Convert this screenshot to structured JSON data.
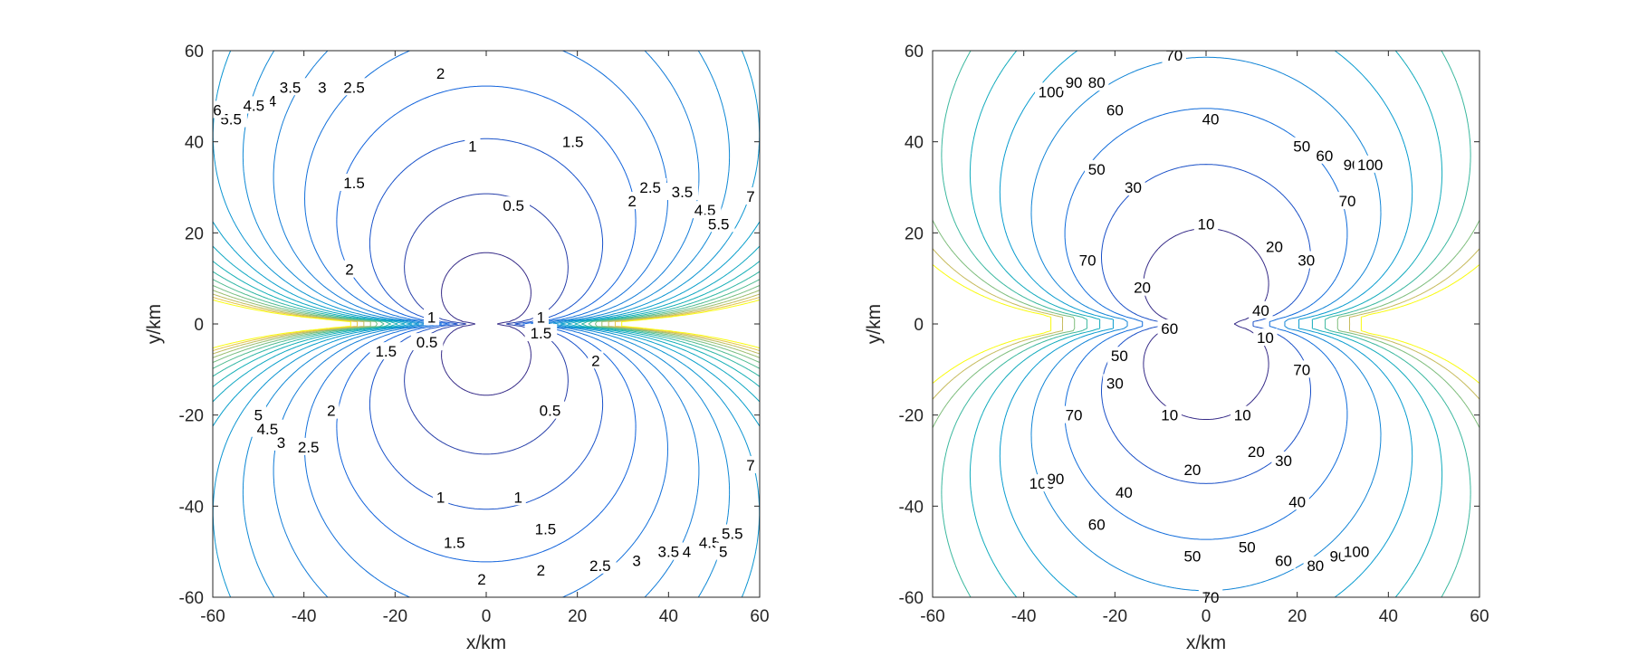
{
  "chart_data": [
    {
      "type": "contour",
      "title": "",
      "xlabel": "x/km",
      "ylabel": "y/km",
      "xlim": [
        -60,
        60
      ],
      "ylim": [
        -60,
        60
      ],
      "xticks": [
        -60,
        -40,
        -20,
        0,
        20,
        40,
        60
      ],
      "yticks": [
        -60,
        -40,
        -20,
        0,
        20,
        40,
        60
      ],
      "xtick_labels": [
        "-60",
        "-40",
        "-20",
        "0",
        "20",
        "40",
        "60"
      ],
      "ytick_labels": [
        "-60",
        "-40",
        "-20",
        "0",
        "20",
        "40",
        "60"
      ],
      "colormap": "parula",
      "singular_points_x": [
        -8,
        8
      ],
      "levels": [
        0.5,
        1,
        1.5,
        2,
        2.5,
        3,
        3.5,
        4,
        4.5,
        5,
        5.5,
        6,
        6.5,
        7,
        7.5,
        8,
        8.5,
        9
      ],
      "color_range": [
        0.5,
        9
      ],
      "contour_labels": [
        {
          "text": "2",
          "x": -10,
          "y": 55
        },
        {
          "text": "2.5",
          "x": -29,
          "y": 52
        },
        {
          "text": "3",
          "x": -36,
          "y": 52
        },
        {
          "text": "3.5",
          "x": -43,
          "y": 52
        },
        {
          "text": "4",
          "x": -47,
          "y": 49
        },
        {
          "text": "4.5",
          "x": -51,
          "y": 48
        },
        {
          "text": "5.5",
          "x": -56,
          "y": 45
        },
        {
          "text": "6",
          "x": -59,
          "y": 47
        },
        {
          "text": "1",
          "x": -3,
          "y": 39
        },
        {
          "text": "1.5",
          "x": 19,
          "y": 40
        },
        {
          "text": "0.5",
          "x": 6,
          "y": 26
        },
        {
          "text": "1.5",
          "x": -29,
          "y": 31
        },
        {
          "text": "2",
          "x": 32,
          "y": 27
        },
        {
          "text": "2.5",
          "x": 36,
          "y": 30
        },
        {
          "text": "3.5",
          "x": 43,
          "y": 29
        },
        {
          "text": "4.5",
          "x": 48,
          "y": 25
        },
        {
          "text": "5.5",
          "x": 51,
          "y": 22
        },
        {
          "text": "7",
          "x": 58,
          "y": 28
        },
        {
          "text": "2",
          "x": -30,
          "y": 12
        },
        {
          "text": "1",
          "x": -12,
          "y": 1.5
        },
        {
          "text": "0.5",
          "x": -13,
          "y": -4
        },
        {
          "text": "1.5",
          "x": -22,
          "y": -6
        },
        {
          "text": "1",
          "x": 12,
          "y": 1.5
        },
        {
          "text": "1.5",
          "x": 12,
          "y": -2
        },
        {
          "text": "2",
          "x": 24,
          "y": -8
        },
        {
          "text": "0.5",
          "x": 14,
          "y": -19
        },
        {
          "text": "2",
          "x": -34,
          "y": -19
        },
        {
          "text": "2.5",
          "x": -39,
          "y": -27
        },
        {
          "text": "3",
          "x": -45,
          "y": -26
        },
        {
          "text": "4.5",
          "x": -48,
          "y": -23
        },
        {
          "text": "5",
          "x": -50,
          "y": -20
        },
        {
          "text": "1",
          "x": -10,
          "y": -38
        },
        {
          "text": "1",
          "x": 7,
          "y": -38
        },
        {
          "text": "1.5",
          "x": -7,
          "y": -48
        },
        {
          "text": "1.5",
          "x": 13,
          "y": -45
        },
        {
          "text": "2",
          "x": -1,
          "y": -56
        },
        {
          "text": "2",
          "x": 12,
          "y": -54
        },
        {
          "text": "2.5",
          "x": 25,
          "y": -53
        },
        {
          "text": "3",
          "x": 33,
          "y": -52
        },
        {
          "text": "3.5",
          "x": 40,
          "y": -50
        },
        {
          "text": "4",
          "x": 44,
          "y": -50
        },
        {
          "text": "4.5",
          "x": 49,
          "y": -48
        },
        {
          "text": "5",
          "x": 52,
          "y": -50
        },
        {
          "text": "5.5",
          "x": 54,
          "y": -46
        },
        {
          "text": "7",
          "x": 58,
          "y": -31
        }
      ]
    },
    {
      "type": "contour",
      "title": "",
      "xlabel": "x/km",
      "ylabel": "y/km",
      "xlim": [
        -60,
        60
      ],
      "ylim": [
        -60,
        60
      ],
      "xticks": [
        -60,
        -40,
        -20,
        0,
        20,
        40,
        60
      ],
      "yticks": [
        -60,
        -40,
        -20,
        0,
        20,
        40,
        60
      ],
      "xtick_labels": [
        "-60",
        "-40",
        "-20",
        "0",
        "20",
        "40",
        "60"
      ],
      "ytick_labels": [
        "-60",
        "-40",
        "-20",
        "0",
        "20",
        "40",
        "60"
      ],
      "colormap": "parula",
      "singular_points_x": [
        -4,
        4
      ],
      "levels": [
        10,
        20,
        30,
        40,
        50,
        60,
        70,
        80,
        90,
        100
      ],
      "color_range": [
        10,
        100
      ],
      "contour_labels": [
        {
          "text": "70",
          "x": -7,
          "y": 59
        },
        {
          "text": "100",
          "x": -34,
          "y": 51
        },
        {
          "text": "90",
          "x": -29,
          "y": 53
        },
        {
          "text": "80",
          "x": -24,
          "y": 53
        },
        {
          "text": "60",
          "x": -20,
          "y": 47
        },
        {
          "text": "40",
          "x": 1,
          "y": 45
        },
        {
          "text": "50",
          "x": 21,
          "y": 39
        },
        {
          "text": "60",
          "x": 26,
          "y": 37
        },
        {
          "text": "90",
          "x": 32,
          "y": 35
        },
        {
          "text": "100",
          "x": 36,
          "y": 35
        },
        {
          "text": "50",
          "x": -24,
          "y": 34
        },
        {
          "text": "30",
          "x": -16,
          "y": 30
        },
        {
          "text": "70",
          "x": 31,
          "y": 27
        },
        {
          "text": "10",
          "x": 0,
          "y": 22
        },
        {
          "text": "20",
          "x": 15,
          "y": 17
        },
        {
          "text": "30",
          "x": 22,
          "y": 14
        },
        {
          "text": "70",
          "x": -26,
          "y": 14
        },
        {
          "text": "20",
          "x": -14,
          "y": 8
        },
        {
          "text": "60",
          "x": -8,
          "y": -1
        },
        {
          "text": "40",
          "x": 12,
          "y": 3
        },
        {
          "text": "10",
          "x": 13,
          "y": -3
        },
        {
          "text": "70",
          "x": 21,
          "y": -10
        },
        {
          "text": "50",
          "x": -19,
          "y": -7
        },
        {
          "text": "30",
          "x": -20,
          "y": -13
        },
        {
          "text": "70",
          "x": -29,
          "y": -20
        },
        {
          "text": "10",
          "x": -8,
          "y": -20
        },
        {
          "text": "10",
          "x": 8,
          "y": -20
        },
        {
          "text": "20",
          "x": 11,
          "y": -28
        },
        {
          "text": "20",
          "x": -3,
          "y": -32
        },
        {
          "text": "30",
          "x": 17,
          "y": -30
        },
        {
          "text": "40",
          "x": -18,
          "y": -37
        },
        {
          "text": "40",
          "x": 20,
          "y": -39
        },
        {
          "text": "50",
          "x": -3,
          "y": -51
        },
        {
          "text": "50",
          "x": 9,
          "y": -49
        },
        {
          "text": "60",
          "x": -24,
          "y": -44
        },
        {
          "text": "60",
          "x": 17,
          "y": -52
        },
        {
          "text": "80",
          "x": 24,
          "y": -53
        },
        {
          "text": "90",
          "x": 29,
          "y": -51
        },
        {
          "text": "100",
          "x": 33,
          "y": -50
        },
        {
          "text": "100",
          "x": -36,
          "y": -35
        },
        {
          "text": "90",
          "x": -33,
          "y": -34
        },
        {
          "text": "70",
          "x": 1,
          "y": -60
        }
      ]
    }
  ]
}
